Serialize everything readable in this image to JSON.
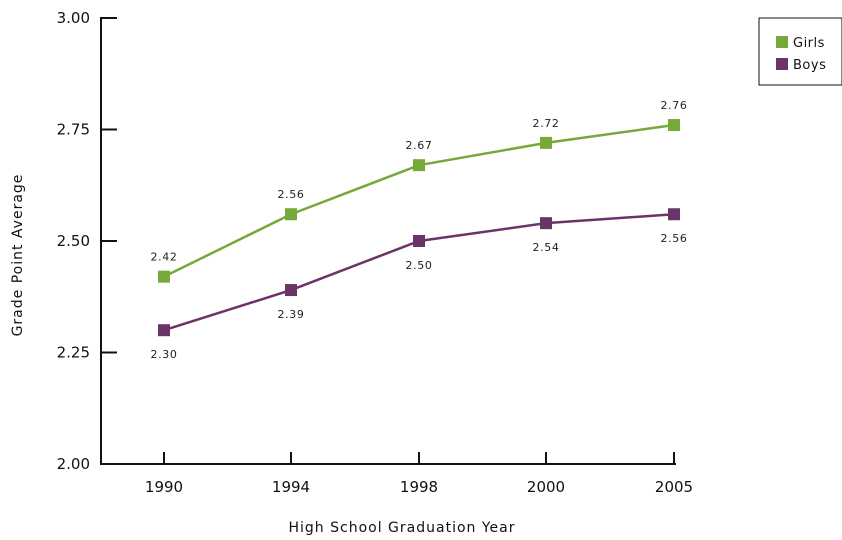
{
  "chart_data": {
    "type": "line",
    "categories": [
      "1990",
      "1994",
      "1998",
      "2000",
      "2005"
    ],
    "series": [
      {
        "name": "Girls",
        "color": "#76a83a",
        "values": [
          2.42,
          2.56,
          2.67,
          2.72,
          2.76
        ],
        "labels": [
          "2.42",
          "2.56",
          "2.67",
          "2.72",
          "2.76"
        ]
      },
      {
        "name": "Boys",
        "color": "#6b3468",
        "values": [
          2.3,
          2.39,
          2.5,
          2.54,
          2.56
        ],
        "labels": [
          "2.30",
          "2.39",
          "2.50",
          "2.54",
          "2.56"
        ]
      }
    ],
    "xlabel": "High School Graduation Year",
    "ylabel": "Grade Point Average",
    "ylim": [
      2.0,
      3.0
    ],
    "yticks": [
      "2.00",
      "2.25",
      "2.50",
      "2.75",
      "3.00"
    ],
    "grid": false,
    "legend_position": "top-right"
  }
}
